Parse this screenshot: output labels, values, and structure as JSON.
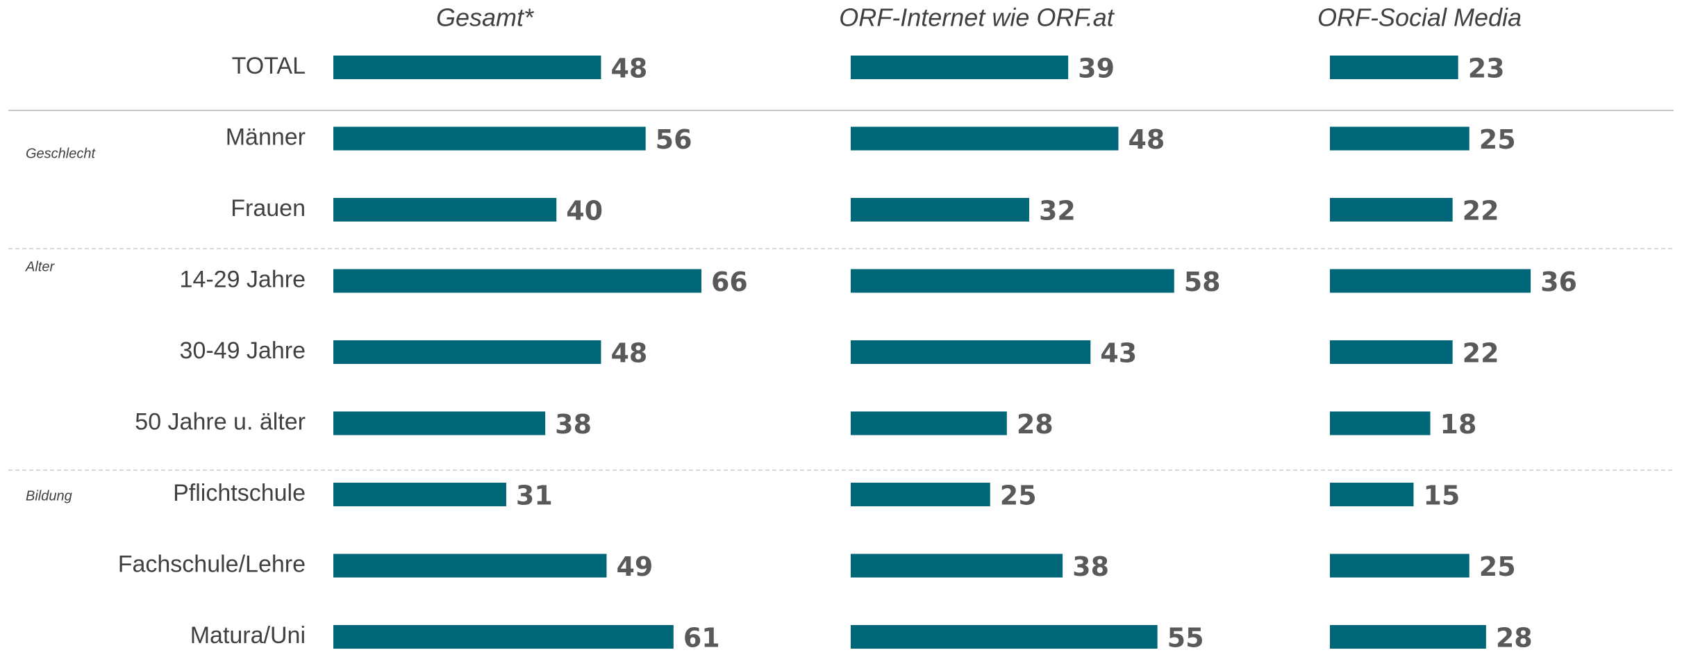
{
  "chart_data": {
    "type": "bar",
    "orientation": "horizontal",
    "categories": [
      "TOTAL",
      "Männer",
      "Frauen",
      "14-29 Jahre",
      "30-49 Jahre",
      "50 Jahre u. älter",
      "Pflichtschule",
      "Fachschule/Lehre",
      "Matura/Uni"
    ],
    "groups": [
      "Geschlecht",
      "Alter",
      "Bildung"
    ],
    "series": [
      {
        "name": "Gesamt*",
        "color": "#006778",
        "values": [
          48,
          56,
          40,
          66,
          48,
          38,
          31,
          49,
          61
        ]
      },
      {
        "name": "ORF-Internet wie ORF.at",
        "color": "#006778",
        "values": [
          39,
          48,
          32,
          58,
          43,
          28,
          25,
          38,
          55
        ]
      },
      {
        "name": "ORF-Social Media",
        "color": "#006778",
        "values": [
          23,
          25,
          22,
          36,
          22,
          18,
          15,
          25,
          28
        ]
      }
    ]
  }
}
